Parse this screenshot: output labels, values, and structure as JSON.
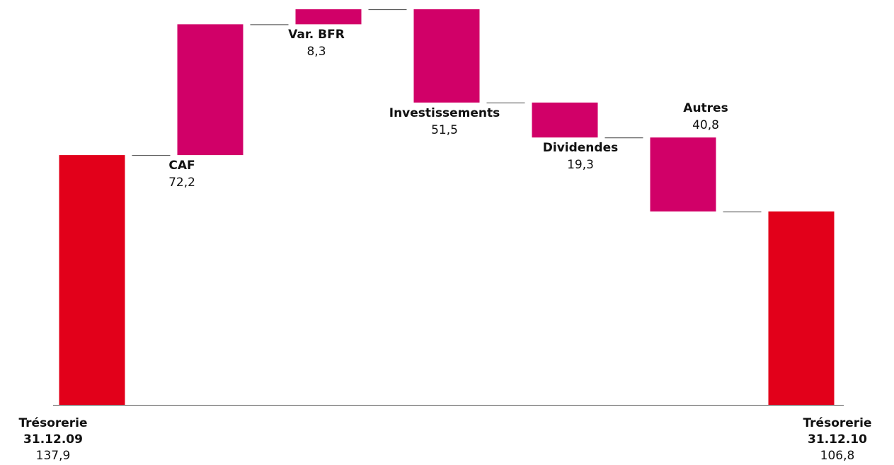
{
  "chart_data": {
    "type": "waterfall",
    "categories": [
      "Trésorerie\n31.12.09",
      "CAF",
      "Var. BFR",
      "Investissements",
      "Dividendes",
      "Autres",
      "Trésorerie\n31.12.10"
    ],
    "measures": [
      "absolute",
      "relative",
      "relative",
      "relative",
      "relative",
      "relative",
      "total"
    ],
    "values": [
      137.9,
      72.2,
      8.3,
      -51.5,
      -19.3,
      -40.8,
      106.8
    ],
    "value_labels": [
      "137,9",
      "72,2",
      "8,3",
      "51,5",
      "19,3",
      "40,8",
      "106,8"
    ],
    "total_color": "#e2001a",
    "change_color": "#d10068",
    "ylim": [
      0,
      220
    ]
  }
}
